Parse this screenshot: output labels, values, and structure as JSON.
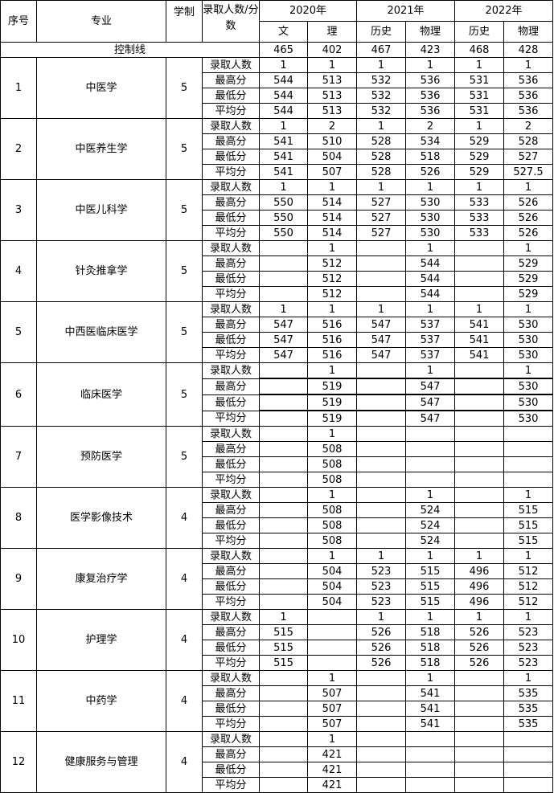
{
  "header": {
    "no": "序号",
    "major": "专业",
    "years": "学制",
    "metric": "录取人数/分数",
    "year_groups": [
      "2020年",
      "2021年",
      "2022年"
    ],
    "subjects": [
      "文",
      "理",
      "历史",
      "物理",
      "历史",
      "物理"
    ]
  },
  "control_line": {
    "label": "控制线",
    "values": [
      "465",
      "402",
      "467",
      "423",
      "468",
      "428"
    ]
  },
  "row_labels": [
    "录取人数",
    "最高分",
    "最低分",
    "平均分"
  ],
  "groups": [
    {
      "no": "1",
      "major": "中医学",
      "years": "5",
      "rows": [
        [
          "1",
          "1",
          "1",
          "1",
          "1",
          "1"
        ],
        [
          "544",
          "513",
          "532",
          "536",
          "531",
          "536"
        ],
        [
          "544",
          "513",
          "532",
          "536",
          "531",
          "536"
        ],
        [
          "544",
          "513",
          "532",
          "536",
          "531",
          "536"
        ]
      ]
    },
    {
      "no": "2",
      "major": "中医养生学",
      "years": "5",
      "rows": [
        [
          "1",
          "2",
          "1",
          "2",
          "1",
          "2"
        ],
        [
          "541",
          "510",
          "528",
          "534",
          "529",
          "528"
        ],
        [
          "541",
          "504",
          "528",
          "518",
          "529",
          "527"
        ],
        [
          "541",
          "507",
          "528",
          "526",
          "529",
          "527.5"
        ]
      ]
    },
    {
      "no": "3",
      "major": "中医儿科学",
      "years": "5",
      "rows": [
        [
          "1",
          "1",
          "1",
          "1",
          "1",
          "1"
        ],
        [
          "550",
          "514",
          "527",
          "530",
          "533",
          "526"
        ],
        [
          "550",
          "514",
          "527",
          "530",
          "533",
          "526"
        ],
        [
          "550",
          "514",
          "527",
          "530",
          "533",
          "526"
        ]
      ]
    },
    {
      "no": "4",
      "major": "针灸推拿学",
      "years": "5",
      "rows": [
        [
          "",
          "1",
          "",
          "1",
          "",
          "1"
        ],
        [
          "",
          "512",
          "",
          "544",
          "",
          "529"
        ],
        [
          "",
          "512",
          "",
          "544",
          "",
          "529"
        ],
        [
          "",
          "512",
          "",
          "544",
          "",
          "529"
        ]
      ]
    },
    {
      "no": "5",
      "major": "中西医临床医学",
      "years": "5",
      "rows": [
        [
          "1",
          "1",
          "1",
          "1",
          "1",
          "1"
        ],
        [
          "547",
          "516",
          "547",
          "537",
          "541",
          "530"
        ],
        [
          "547",
          "516",
          "547",
          "537",
          "541",
          "530"
        ],
        [
          "547",
          "516",
          "547",
          "537",
          "541",
          "530"
        ]
      ]
    },
    {
      "no": "6",
      "major": "临床医学",
      "years": "5",
      "rows": [
        [
          "",
          "1",
          "",
          "1",
          "",
          "1"
        ],
        [
          "",
          "519",
          "",
          "547",
          "",
          "530"
        ],
        [
          "",
          "519",
          "",
          "547",
          "",
          "530"
        ],
        [
          "",
          "519",
          "",
          "547",
          "",
          "530"
        ]
      ]
    },
    {
      "no": "7",
      "major": "预防医学",
      "years": "5",
      "rows": [
        [
          "",
          "1",
          "",
          "",
          "",
          ""
        ],
        [
          "",
          "508",
          "",
          "",
          "",
          ""
        ],
        [
          "",
          "508",
          "",
          "",
          "",
          ""
        ],
        [
          "",
          "508",
          "",
          "",
          "",
          ""
        ]
      ]
    },
    {
      "no": "8",
      "major": "医学影像技术",
      "years": "4",
      "rows": [
        [
          "",
          "1",
          "",
          "1",
          "",
          "1"
        ],
        [
          "",
          "508",
          "",
          "524",
          "",
          "515"
        ],
        [
          "",
          "508",
          "",
          "524",
          "",
          "515"
        ],
        [
          "",
          "508",
          "",
          "524",
          "",
          "515"
        ]
      ]
    },
    {
      "no": "9",
      "major": "康复治疗学",
      "years": "4",
      "rows": [
        [
          "",
          "1",
          "1",
          "1",
          "1",
          "1"
        ],
        [
          "",
          "504",
          "523",
          "515",
          "496",
          "512"
        ],
        [
          "",
          "504",
          "523",
          "515",
          "496",
          "512"
        ],
        [
          "",
          "504",
          "523",
          "515",
          "496",
          "512"
        ]
      ]
    },
    {
      "no": "10",
      "major": "护理学",
      "years": "4",
      "rows": [
        [
          "1",
          "",
          "1",
          "1",
          "1",
          "1"
        ],
        [
          "515",
          "",
          "526",
          "518",
          "526",
          "523"
        ],
        [
          "515",
          "",
          "526",
          "518",
          "526",
          "523"
        ],
        [
          "515",
          "",
          "526",
          "518",
          "526",
          "523"
        ]
      ]
    },
    {
      "no": "11",
      "major": "中药学",
      "years": "4",
      "rows": [
        [
          "",
          "1",
          "",
          "1",
          "",
          "1"
        ],
        [
          "",
          "507",
          "",
          "541",
          "",
          "535"
        ],
        [
          "",
          "507",
          "",
          "541",
          "",
          "535"
        ],
        [
          "",
          "507",
          "",
          "541",
          "",
          "535"
        ]
      ]
    },
    {
      "no": "12",
      "major": "健康服务与管理",
      "years": "4",
      "rows": [
        [
          "",
          "1",
          "",
          "",
          "",
          ""
        ],
        [
          "",
          "421",
          "",
          "",
          "",
          ""
        ],
        [
          "",
          "421",
          "",
          "",
          "",
          ""
        ],
        [
          "",
          "421",
          "",
          "",
          "",
          ""
        ]
      ]
    }
  ]
}
